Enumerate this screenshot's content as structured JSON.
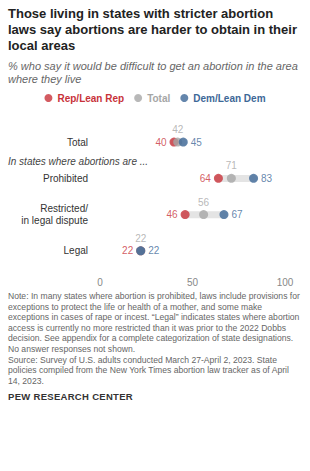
{
  "chart_data": {
    "type": "dot",
    "title": "Those living in states with stricter abortion laws say abortions are harder to obtain in their local areas",
    "subtitle": "% who say it would be difficult to get an abortion in the area where they live",
    "section_label": "In states where abortions are ...",
    "categories": [
      "Total",
      "Prohibited",
      "Restricted/\nin legal dispute",
      "Legal"
    ],
    "series": [
      {
        "name": "Rep/Lean Rep",
        "color": "#c8323a",
        "values": [
          40,
          64,
          46,
          22
        ]
      },
      {
        "name": "Total",
        "color": "#a6a6a6",
        "values": [
          42,
          71,
          56,
          22
        ]
      },
      {
        "name": "Dem/Lean Dem",
        "color": "#3d6897",
        "values": [
          45,
          83,
          67,
          22
        ]
      }
    ],
    "xlim": [
      0,
      100
    ],
    "xticks": [
      0,
      50,
      100
    ],
    "grid": false,
    "legend": "top",
    "orientation": "horizontal",
    "data_labels": true,
    "note": "Note: In many states where abortion is prohibited, laws include provisions for exceptions to protect the life or health of a mother, and some make exceptions in cases of rape or incest. “Legal” indicates states where abortion access is currently no more restricted than it was prior to the 2022 Dobbs decision. See appendix for a complete categorization of state designations. No answer responses not shown.",
    "source": "Source: Survey of U.S. adults conducted March 27-April 2, 2023. State policies compiled from the New York Times abortion law tracker as of April 14, 2023.",
    "credit": "PEW RESEARCH CENTER"
  }
}
